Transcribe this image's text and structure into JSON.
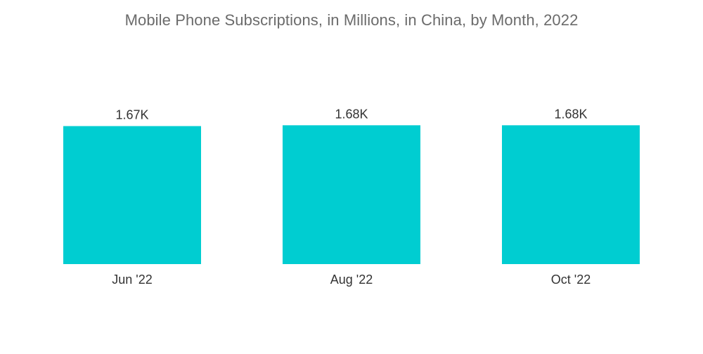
{
  "chart_data": {
    "type": "bar",
    "title": "Mobile Phone Subscriptions, in Millions, in China, by Month, 2022",
    "xlabel": "",
    "ylabel": "",
    "categories": [
      "Jun '22",
      "Aug '22",
      "Oct '22"
    ],
    "values": [
      1670,
      1680,
      1680
    ],
    "data_labels": [
      "1.67K",
      "1.68K",
      "1.68K"
    ],
    "ylim": [
      0,
      1700
    ],
    "grid": false,
    "legend": "none",
    "bar_color": "#00CDD1"
  }
}
